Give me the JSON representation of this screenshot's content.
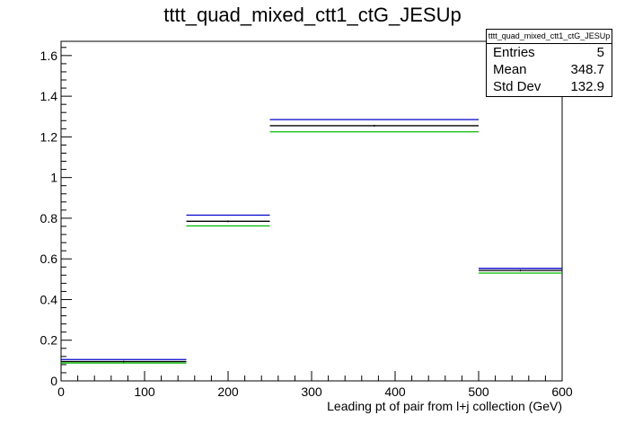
{
  "chart_data": {
    "type": "histogram",
    "title": "tttt_quad_mixed_ctt1_ctG_JESUp",
    "xlabel": "Leading pt of pair from l+j collection (GeV)",
    "ylabel": "",
    "xlim": [
      0,
      600
    ],
    "ylim": [
      0,
      1.67
    ],
    "x_ticks": [
      "0",
      "100",
      "200",
      "300",
      "400",
      "500",
      "600"
    ],
    "y_ticks": [
      "0",
      "0.2",
      "0.4",
      "0.6",
      "0.8",
      "1",
      "1.2",
      "1.4",
      "1.6"
    ],
    "bin_edges": [
      0,
      150,
      250,
      500,
      600
    ],
    "series": [
      {
        "color": "#0000cc",
        "values": [
          0.105,
          0.815,
          1.285,
          0.553
        ]
      },
      {
        "color": "#000000",
        "values": [
          0.095,
          0.785,
          1.255,
          0.543
        ]
      },
      {
        "color": "#00bb00",
        "values": [
          0.088,
          0.762,
          1.225,
          0.53
        ]
      }
    ],
    "grid": false,
    "stats": {
      "title": "tttt_quad_mixed_ctt1_ctG_JESUp",
      "entries_label": "Entries",
      "entries_value": "5",
      "mean_label": "Mean",
      "mean_value": "348.7",
      "stddev_label": "Std Dev",
      "stddev_value": "132.9"
    }
  }
}
